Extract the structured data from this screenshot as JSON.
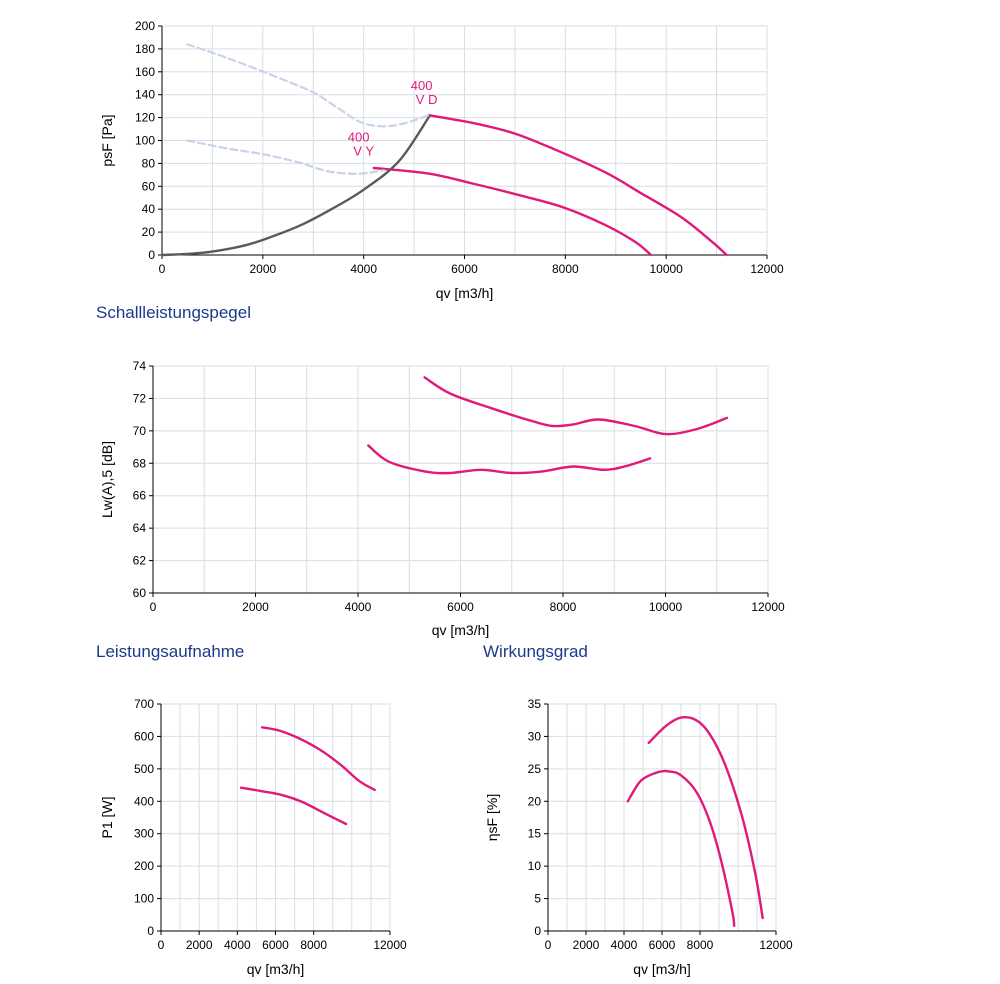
{
  "colors": {
    "series": "#e0197a",
    "system": "#5a5a5a",
    "prior": "#c8d4e6",
    "grid": "#d9dde6",
    "section": "#1a3a8a"
  },
  "sections": {
    "sound": "Schallleistungspegel",
    "power": "Leistungsaufnahme",
    "efficiency": "Wirkungsgrad"
  },
  "chart_data": [
    {
      "id": "pressure",
      "type": "line",
      "xlabel": "qv [m3/h]",
      "ylabel": "psF [Pa]",
      "xlim": [
        0,
        12000
      ],
      "ylim": [
        0,
        200
      ],
      "xticks": [
        0,
        2000,
        4000,
        6000,
        8000,
        10000,
        12000
      ],
      "yticks": [
        0,
        20,
        40,
        60,
        80,
        100,
        120,
        140,
        160,
        180,
        200
      ],
      "annotations": [
        {
          "line1": "400",
          "line2": "V D",
          "x": 5150,
          "y": 125
        },
        {
          "line1": "400",
          "line2": "V Y",
          "x": 3900,
          "y": 80
        }
      ],
      "series": [
        {
          "style": "series",
          "points": [
            [
              5300,
              122
            ],
            [
              6200,
              115
            ],
            [
              7000,
              106
            ],
            [
              7800,
              92
            ],
            [
              8800,
              72
            ],
            [
              9500,
              54
            ],
            [
              10300,
              33
            ],
            [
              10900,
              12
            ],
            [
              11200,
              0
            ]
          ]
        },
        {
          "style": "series",
          "points": [
            [
              4200,
              76
            ],
            [
              5300,
              71
            ],
            [
              6200,
              62
            ],
            [
              7200,
              51
            ],
            [
              8000,
              41
            ],
            [
              8800,
              26
            ],
            [
              9400,
              11
            ],
            [
              9700,
              0
            ]
          ]
        },
        {
          "style": "system",
          "points": [
            [
              0,
              0
            ],
            [
              500,
              1
            ],
            [
              1000,
              3
            ],
            [
              1700,
              9
            ],
            [
              2300,
              18
            ],
            [
              2800,
              27
            ],
            [
              3400,
              41
            ],
            [
              4000,
              57
            ],
            [
              4700,
              82
            ],
            [
              5300,
              121
            ]
          ]
        },
        {
          "style": "prior",
          "points": [
            [
              500,
              184
            ],
            [
              1300,
              172
            ],
            [
              2300,
              155
            ],
            [
              3000,
              142
            ],
            [
              3500,
              128
            ],
            [
              4000,
              115
            ],
            [
              4600,
              113
            ],
            [
              5300,
              122
            ]
          ]
        },
        {
          "style": "prior",
          "points": [
            [
              500,
              100
            ],
            [
              1300,
              93
            ],
            [
              2000,
              88
            ],
            [
              2700,
              81
            ],
            [
              3300,
              73
            ],
            [
              3900,
              71
            ],
            [
              4400,
              74
            ]
          ]
        }
      ]
    },
    {
      "id": "sound",
      "type": "line",
      "xlabel": "qv [m3/h]",
      "ylabel": "Lw(A),5 [dB]",
      "xlim": [
        0,
        12000
      ],
      "ylim": [
        60,
        74
      ],
      "xticks": [
        0,
        2000,
        4000,
        6000,
        8000,
        10000,
        12000
      ],
      "yticks": [
        60,
        62,
        64,
        66,
        68,
        70,
        72,
        74
      ],
      "series": [
        {
          "style": "series",
          "points": [
            [
              5300,
              73.3
            ],
            [
              5800,
              72.3
            ],
            [
              6600,
              71.4
            ],
            [
              7400,
              70.6
            ],
            [
              7800,
              70.3
            ],
            [
              8200,
              70.4
            ],
            [
              8700,
              70.7
            ],
            [
              9400,
              70.3
            ],
            [
              10000,
              69.8
            ],
            [
              10600,
              70.1
            ],
            [
              11200,
              70.8
            ]
          ]
        },
        {
          "style": "series",
          "points": [
            [
              4200,
              69.1
            ],
            [
              4600,
              68.1
            ],
            [
              5300,
              67.5
            ],
            [
              5800,
              67.4
            ],
            [
              6400,
              67.6
            ],
            [
              7000,
              67.4
            ],
            [
              7600,
              67.5
            ],
            [
              8200,
              67.8
            ],
            [
              8800,
              67.6
            ],
            [
              9200,
              67.8
            ],
            [
              9700,
              68.3
            ]
          ]
        }
      ]
    },
    {
      "id": "power",
      "type": "line",
      "xlabel": "qv [m3/h]",
      "ylabel": "P1 [W]",
      "xlim": [
        0,
        12000
      ],
      "ylim": [
        0,
        700
      ],
      "xticks": [
        0,
        2000,
        4000,
        6000,
        8000,
        12000
      ],
      "yticks": [
        0,
        100,
        200,
        300,
        400,
        500,
        600,
        700
      ],
      "series": [
        {
          "style": "series",
          "points": [
            [
              5300,
              628
            ],
            [
              6200,
              618
            ],
            [
              7200,
              595
            ],
            [
              8300,
              560
            ],
            [
              9400,
              513
            ],
            [
              10400,
              462
            ],
            [
              11200,
              435
            ]
          ]
        },
        {
          "style": "series",
          "points": [
            [
              4200,
              442
            ],
            [
              5200,
              432
            ],
            [
              6300,
              420
            ],
            [
              7400,
              398
            ],
            [
              8600,
              362
            ],
            [
              9700,
              330
            ]
          ]
        }
      ]
    },
    {
      "id": "efficiency",
      "type": "line",
      "xlabel": "qv [m3/h]",
      "ylabel": "ηsF [%]",
      "xlim": [
        0,
        12000
      ],
      "ylim": [
        0,
        35
      ],
      "xticks": [
        0,
        2000,
        4000,
        6000,
        8000,
        12000
      ],
      "yticks": [
        0,
        5,
        10,
        15,
        20,
        25,
        30,
        35
      ],
      "series": [
        {
          "style": "series",
          "points": [
            [
              5300,
              29
            ],
            [
              6200,
              31.6
            ],
            [
              7000,
              32.9
            ],
            [
              7800,
              32.5
            ],
            [
              8500,
              30.4
            ],
            [
              9300,
              25.8
            ],
            [
              10200,
              17.8
            ],
            [
              10900,
              9
            ],
            [
              11300,
              2
            ]
          ]
        },
        {
          "style": "series",
          "points": [
            [
              4200,
              20
            ],
            [
              4900,
              23.2
            ],
            [
              5800,
              24.5
            ],
            [
              6400,
              24.6
            ],
            [
              7000,
              24
            ],
            [
              7800,
              21.5
            ],
            [
              8500,
              17
            ],
            [
              9100,
              11
            ],
            [
              9700,
              3
            ],
            [
              9800,
              0.8
            ]
          ]
        }
      ]
    }
  ]
}
